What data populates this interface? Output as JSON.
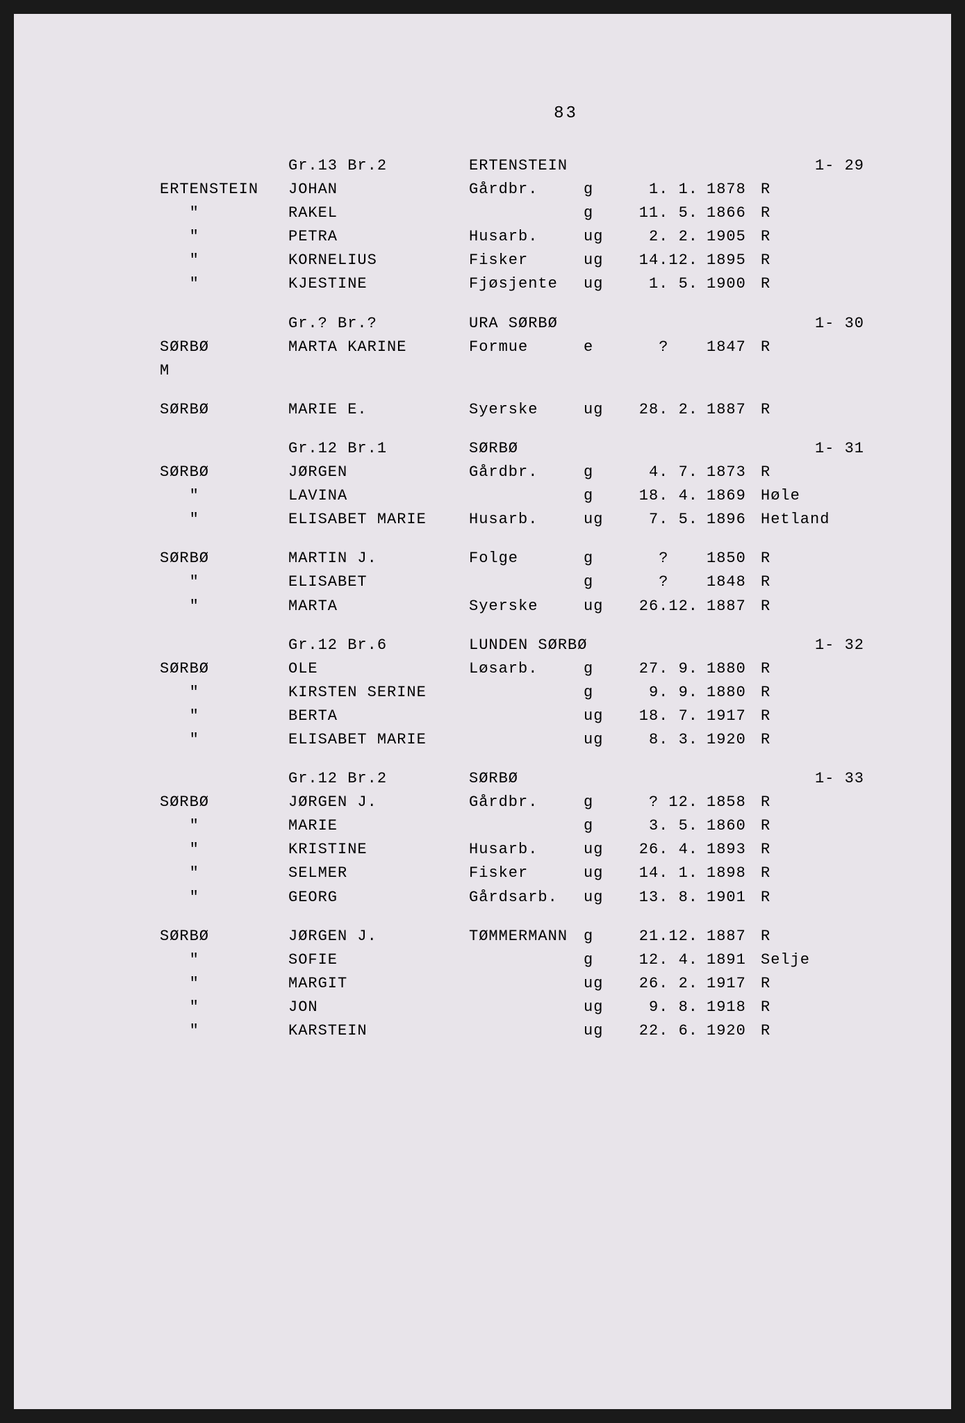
{
  "page_number": "83",
  "font_family": "Courier New, monospace",
  "font_size_pt": 22,
  "background_color": "#e8e4ea",
  "text_color": "#2a2a2a",
  "sections": [
    {
      "header": {
        "grbr": "Gr.13 Br.2",
        "place": "ERTENSTEIN",
        "ref": "1- 29"
      },
      "rows": [
        {
          "surname": "ERTENSTEIN",
          "name": "JOHAN",
          "occupation": "Gårdbr.",
          "status": "g",
          "date": " 1. 1.",
          "year": "1878",
          "place": "R"
        },
        {
          "surname": "\"",
          "name": "RAKEL",
          "occupation": "",
          "status": "g",
          "date": "11. 5.",
          "year": "1866",
          "place": "R"
        },
        {
          "surname": "\"",
          "name": "PETRA",
          "occupation": "Husarb.",
          "status": "ug",
          "date": " 2. 2.",
          "year": "1905",
          "place": "R"
        },
        {
          "surname": "\"",
          "name": "KORNELIUS",
          "occupation": "Fisker",
          "status": "ug",
          "date": "14.12.",
          "year": "1895",
          "place": "R"
        },
        {
          "surname": "\"",
          "name": "KJESTINE",
          "occupation": "Fjøsjente",
          "status": "ug",
          "date": " 1. 5.",
          "year": "1900",
          "place": "R"
        }
      ]
    },
    {
      "header": {
        "grbr": "Gr.? Br.?",
        "place": "URA SØRBØ",
        "ref": "1- 30"
      },
      "rows": [
        {
          "surname": "SØRBØ",
          "name": "MARTA KARINE",
          "occupation": "Formue",
          "status": "e",
          "date": "?   ",
          "year": "1847",
          "place": "R"
        },
        {
          "surname": "M",
          "name": "",
          "occupation": "",
          "status": "",
          "date": "",
          "year": "",
          "place": ""
        },
        {
          "surname": "SØRBØ",
          "name": "MARIE E.",
          "occupation": "Syerske",
          "status": "ug",
          "date": "28. 2.",
          "year": "1887",
          "place": "R"
        }
      ]
    },
    {
      "header": {
        "grbr": "Gr.12 Br.1",
        "place": "SØRBØ",
        "ref": "1- 31"
      },
      "rows": [
        {
          "surname": "SØRBØ",
          "name": "JØRGEN",
          "occupation": "Gårdbr.",
          "status": "g",
          "date": " 4. 7.",
          "year": "1873",
          "place": "R"
        },
        {
          "surname": "\"",
          "name": "LAVINA",
          "occupation": "",
          "status": "g",
          "date": "18. 4.",
          "year": "1869",
          "place": "Høle"
        },
        {
          "surname": "\"",
          "name": "ELISABET MARIE",
          "occupation": "Husarb.",
          "status": "ug",
          "date": " 7. 5.",
          "year": "1896",
          "place": "Hetland"
        }
      ]
    },
    {
      "header": null,
      "rows": [
        {
          "surname": "SØRBØ",
          "name": "MARTIN J.",
          "occupation": "Folge",
          "status": "g",
          "date": "?   ",
          "year": "1850",
          "place": "R"
        },
        {
          "surname": "\"",
          "name": "ELISABET",
          "occupation": "",
          "status": "g",
          "date": "?   ",
          "year": "1848",
          "place": "R"
        },
        {
          "surname": "\"",
          "name": "MARTA",
          "occupation": "Syerske",
          "status": "ug",
          "date": "26.12.",
          "year": "1887",
          "place": "R"
        }
      ]
    },
    {
      "header": {
        "grbr": "Gr.12 Br.6",
        "place": "LUNDEN SØRBØ",
        "ref": "1- 32"
      },
      "rows": [
        {
          "surname": "SØRBØ",
          "name": "OLE",
          "occupation": "Løsarb.",
          "status": "g",
          "date": "27. 9.",
          "year": "1880",
          "place": "R"
        },
        {
          "surname": "\"",
          "name": "KIRSTEN SERINE",
          "occupation": "",
          "status": "g",
          "date": " 9. 9.",
          "year": "1880",
          "place": "R"
        },
        {
          "surname": "\"",
          "name": "BERTA",
          "occupation": "",
          "status": "ug",
          "date": "18. 7.",
          "year": "1917",
          "place": "R"
        },
        {
          "surname": "\"",
          "name": "ELISABET MARIE",
          "occupation": "",
          "status": "ug",
          "date": " 8. 3.",
          "year": "1920",
          "place": "R"
        }
      ]
    },
    {
      "header": {
        "grbr": "Gr.12 Br.2",
        "place": "SØRBØ",
        "ref": "1- 33"
      },
      "rows": [
        {
          "surname": "SØRBØ",
          "name": "JØRGEN J.",
          "occupation": "Gårdbr.",
          "status": "g",
          "date": " ? 12.",
          "year": "1858",
          "place": "R"
        },
        {
          "surname": "\"",
          "name": "MARIE",
          "occupation": "",
          "status": "g",
          "date": " 3. 5.",
          "year": "1860",
          "place": "R"
        },
        {
          "surname": "\"",
          "name": "KRISTINE",
          "occupation": "Husarb.",
          "status": "ug",
          "date": "26. 4.",
          "year": "1893",
          "place": "R"
        },
        {
          "surname": "\"",
          "name": "SELMER",
          "occupation": "Fisker",
          "status": "ug",
          "date": "14. 1.",
          "year": "1898",
          "place": "R"
        },
        {
          "surname": "\"",
          "name": "GEORG",
          "occupation": "Gårdsarb.",
          "status": "ug",
          "date": "13. 8.",
          "year": "1901",
          "place": "R"
        }
      ]
    },
    {
      "header": null,
      "rows": [
        {
          "surname": "SØRBØ",
          "name": "JØRGEN J.",
          "occupation": "TØMMERMANN",
          "status": "g",
          "date": "21.12.",
          "year": "1887",
          "place": "R"
        },
        {
          "surname": "\"",
          "name": "SOFIE",
          "occupation": "",
          "status": "g",
          "date": "12. 4.",
          "year": "1891",
          "place": "Selje"
        },
        {
          "surname": "\"",
          "name": "MARGIT",
          "occupation": "",
          "status": "ug",
          "date": "26. 2.",
          "year": "1917",
          "place": "R"
        },
        {
          "surname": "\"",
          "name": "JON",
          "occupation": "",
          "status": "ug",
          "date": " 9. 8.",
          "year": "1918",
          "place": "R"
        },
        {
          "surname": "\"",
          "name": "KARSTEIN",
          "occupation": "",
          "status": "ug",
          "date": "22. 6.",
          "year": "1920",
          "place": "R"
        }
      ]
    }
  ]
}
